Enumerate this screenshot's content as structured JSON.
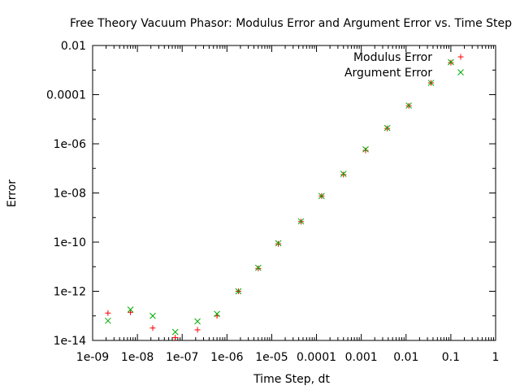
{
  "chart_data": {
    "type": "scatter",
    "title": "Free Theory Vacuum Phasor: Modulus Error and Argument Error vs. Time Step",
    "xlabel": "Time Step, dt",
    "ylabel": "Error",
    "x_scale": "log",
    "y_scale": "log",
    "xlim": [
      1e-09,
      1
    ],
    "ylim": [
      1e-14,
      0.01
    ],
    "x_ticks": [
      {
        "value": 1e-09,
        "label": "1e-09"
      },
      {
        "value": 1e-08,
        "label": "1e-08"
      },
      {
        "value": 1e-07,
        "label": "1e-07"
      },
      {
        "value": 1e-06,
        "label": "1e-06"
      },
      {
        "value": 1e-05,
        "label": "1e-05"
      },
      {
        "value": 0.0001,
        "label": "0.0001"
      },
      {
        "value": 0.001,
        "label": "0.001"
      },
      {
        "value": 0.01,
        "label": "0.01"
      },
      {
        "value": 0.1,
        "label": "0.1"
      },
      {
        "value": 1,
        "label": "1"
      }
    ],
    "y_ticks": [
      {
        "value": 1e-14,
        "label": "1e-14"
      },
      {
        "value": 1e-12,
        "label": "1e-12"
      },
      {
        "value": 1e-10,
        "label": "1e-10"
      },
      {
        "value": 1e-08,
        "label": "1e-08"
      },
      {
        "value": 1e-06,
        "label": "1e-06"
      },
      {
        "value": 0.0001,
        "label": "0.0001"
      },
      {
        "value": 0.01,
        "label": "0.01"
      }
    ],
    "grid": false,
    "legend": "top-right",
    "series": [
      {
        "name": "Modulus Error",
        "marker": "plus",
        "color": "#ff0000",
        "points": [
          [
            2.2e-09,
            1.3e-13
          ],
          [
            7e-09,
            1.4e-13
          ],
          [
            2.2e-08,
            3.2e-14
          ],
          [
            7e-08,
            1.3e-14
          ],
          [
            2.2e-07,
            2.7e-14
          ],
          [
            6e-07,
            1e-13
          ],
          [
            1.8e-06,
            1e-12
          ],
          [
            5e-06,
            8.5e-12
          ],
          [
            1.4e-05,
            8.5e-11
          ],
          [
            4.5e-05,
            6.8e-10
          ],
          [
            0.00013,
            7.5e-09
          ],
          [
            0.0004,
            5.6e-08
          ],
          [
            0.00125,
            5.4e-07
          ],
          [
            0.0038,
            4.2e-06
          ],
          [
            0.0115,
            3.5e-05
          ],
          [
            0.036,
            0.0003
          ],
          [
            0.1,
            0.002
          ]
        ]
      },
      {
        "name": "Argument Error",
        "marker": "cross",
        "color": "#00aa00",
        "points": [
          [
            2.2e-09,
            6.3e-14
          ],
          [
            7e-09,
            1.8e-13
          ],
          [
            2.2e-08,
            1e-13
          ],
          [
            7e-08,
            2.2e-14
          ],
          [
            2.2e-07,
            6e-14
          ],
          [
            6e-07,
            1.2e-13
          ],
          [
            1.8e-06,
            1e-12
          ],
          [
            5e-06,
            9e-12
          ],
          [
            1.4e-05,
            9e-11
          ],
          [
            4.5e-05,
            7e-10
          ],
          [
            0.00013,
            7.5e-09
          ],
          [
            0.0004,
            6e-08
          ],
          [
            0.00125,
            6e-07
          ],
          [
            0.0038,
            4.4e-06
          ],
          [
            0.0115,
            3.6e-05
          ],
          [
            0.036,
            0.0003
          ],
          [
            0.1,
            0.0021
          ]
        ]
      }
    ]
  }
}
